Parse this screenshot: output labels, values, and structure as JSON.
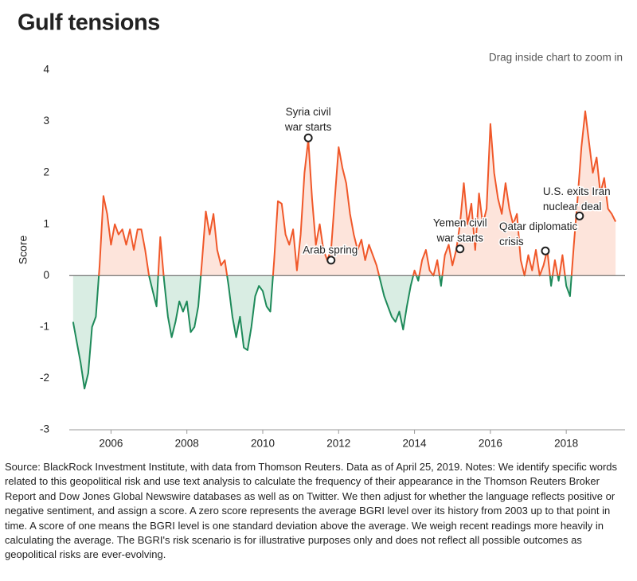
{
  "chart_data": {
    "type": "line",
    "title": "Gulf tensions",
    "hint": "Drag inside chart to zoom in",
    "y_label": "Score",
    "source": "Source: BlackRock Investment Institute, with data from Thomson Reuters. Data as of April 25, 2019. Notes: We identify specific words related to this geopolitical risk and use text analysis to calculate the frequency of their appearance in the Thomson Reuters Broker Report and Dow Jones Global Newswire databases as well as on Twitter. We then adjust for whether the language reflects positive or negative sentiment, and assign a score. A zero score represents the average BGRI level over its history from 2003 up to that point in time. A score of one means the BGRI level is one standard deviation above the average. We weigh recent readings more heavily in calculating the average. The BGRI's risk scenario is for illustrative purposes only and does not reflect all possible outcomes as geopolitical risks are ever-evolving.",
    "positive_color": "#f0582a",
    "negative_color": "#1e8a5a",
    "positive_fill": "#fde4db",
    "negative_fill": "#d9ede3",
    "xlim": [
      2004.9,
      2019.55
    ],
    "ylim": [
      -3,
      4
    ],
    "xticks": [
      2006,
      2008,
      2010,
      2012,
      2014,
      2016,
      2018
    ],
    "yticks": [
      -3,
      -2,
      -1,
      0,
      1,
      2,
      3,
      4
    ],
    "x": [
      2005.0,
      2005.1,
      2005.2,
      2005.3,
      2005.4,
      2005.5,
      2005.6,
      2005.7,
      2005.8,
      2005.9,
      2006.0,
      2006.1,
      2006.2,
      2006.3,
      2006.4,
      2006.5,
      2006.6,
      2006.7,
      2006.8,
      2006.9,
      2007.0,
      2007.1,
      2007.2,
      2007.3,
      2007.4,
      2007.5,
      2007.6,
      2007.7,
      2007.8,
      2007.9,
      2008.0,
      2008.1,
      2008.2,
      2008.3,
      2008.4,
      2008.5,
      2008.6,
      2008.7,
      2008.8,
      2008.9,
      2009.0,
      2009.1,
      2009.2,
      2009.3,
      2009.4,
      2009.5,
      2009.6,
      2009.7,
      2009.8,
      2009.9,
      2010.0,
      2010.1,
      2010.2,
      2010.3,
      2010.4,
      2010.5,
      2010.6,
      2010.7,
      2010.8,
      2010.9,
      2011.0,
      2011.1,
      2011.2,
      2011.3,
      2011.4,
      2011.5,
      2011.6,
      2011.7,
      2011.8,
      2011.9,
      2012.0,
      2012.1,
      2012.2,
      2012.3,
      2012.4,
      2012.5,
      2012.6,
      2012.7,
      2012.8,
      2012.9,
      2013.0,
      2013.1,
      2013.2,
      2013.3,
      2013.4,
      2013.5,
      2013.6,
      2013.7,
      2013.8,
      2013.9,
      2014.0,
      2014.1,
      2014.2,
      2014.3,
      2014.4,
      2014.5,
      2014.6,
      2014.7,
      2014.8,
      2014.9,
      2015.0,
      2015.1,
      2015.2,
      2015.3,
      2015.4,
      2015.5,
      2015.6,
      2015.7,
      2015.8,
      2015.9,
      2016.0,
      2016.1,
      2016.2,
      2016.3,
      2016.4,
      2016.5,
      2016.6,
      2016.7,
      2016.8,
      2016.9,
      2017.0,
      2017.1,
      2017.2,
      2017.3,
      2017.4,
      2017.5,
      2017.6,
      2017.7,
      2017.8,
      2017.9,
      2018.0,
      2018.1,
      2018.2,
      2018.3,
      2018.4,
      2018.5,
      2018.6,
      2018.7,
      2018.8,
      2018.9,
      2019.0,
      2019.1,
      2019.2,
      2019.3
    ],
    "values": [
      -0.9,
      -1.3,
      -1.7,
      -2.2,
      -1.9,
      -1.0,
      -0.8,
      0.2,
      1.55,
      1.2,
      0.6,
      1.0,
      0.8,
      0.9,
      0.6,
      0.9,
      0.5,
      0.9,
      0.9,
      0.5,
      0.0,
      -0.3,
      -0.6,
      0.75,
      -0.1,
      -0.8,
      -1.2,
      -0.9,
      -0.5,
      -0.7,
      -0.5,
      -1.1,
      -1.0,
      -0.6,
      0.3,
      1.25,
      0.8,
      1.2,
      0.5,
      0.2,
      0.3,
      -0.2,
      -0.8,
      -1.2,
      -0.8,
      -1.4,
      -1.45,
      -1.0,
      -0.4,
      -0.2,
      -0.3,
      -0.6,
      -0.7,
      0.3,
      1.45,
      1.4,
      0.8,
      0.6,
      0.9,
      0.1,
      0.8,
      2.0,
      2.65,
      1.5,
      0.6,
      1.0,
      0.5,
      0.3,
      0.5,
      1.5,
      2.5,
      2.1,
      1.8,
      1.2,
      0.8,
      0.5,
      0.7,
      0.3,
      0.6,
      0.4,
      0.2,
      -0.1,
      -0.4,
      -0.6,
      -0.8,
      -0.9,
      -0.7,
      -1.05,
      -0.6,
      -0.2,
      0.1,
      -0.1,
      0.3,
      0.5,
      0.1,
      0.0,
      0.3,
      -0.2,
      0.4,
      0.6,
      0.2,
      0.5,
      1.0,
      1.8,
      1.0,
      1.4,
      0.5,
      1.6,
      1.0,
      1.3,
      2.95,
      2.0,
      1.5,
      1.2,
      1.8,
      1.3,
      1.0,
      1.2,
      0.3,
      0.0,
      0.4,
      0.1,
      0.5,
      0.0,
      0.2,
      0.5,
      -0.2,
      0.3,
      -0.1,
      0.4,
      -0.2,
      -0.4,
      0.6,
      1.5,
      2.5,
      3.2,
      2.6,
      2.0,
      2.3,
      1.6,
      1.9,
      1.3,
      1.2,
      1.05
    ],
    "annotations": [
      {
        "x": 2011.2,
        "y": 2.68,
        "lines": [
          "Syria civil",
          "war starts"
        ]
      },
      {
        "x": 2011.8,
        "y": 0.3,
        "lines": [
          "Arab spring"
        ]
      },
      {
        "x": 2015.2,
        "y": 0.52,
        "lines": [
          "Yemen civil",
          "war starts"
        ]
      },
      {
        "x": 2017.45,
        "y": 0.48,
        "lines": [
          "Qatar diplomatic",
          "crisis"
        ]
      },
      {
        "x": 2018.35,
        "y": 1.16,
        "lines": [
          "U.S. exits Iran",
          "nuclear deal"
        ]
      }
    ]
  }
}
